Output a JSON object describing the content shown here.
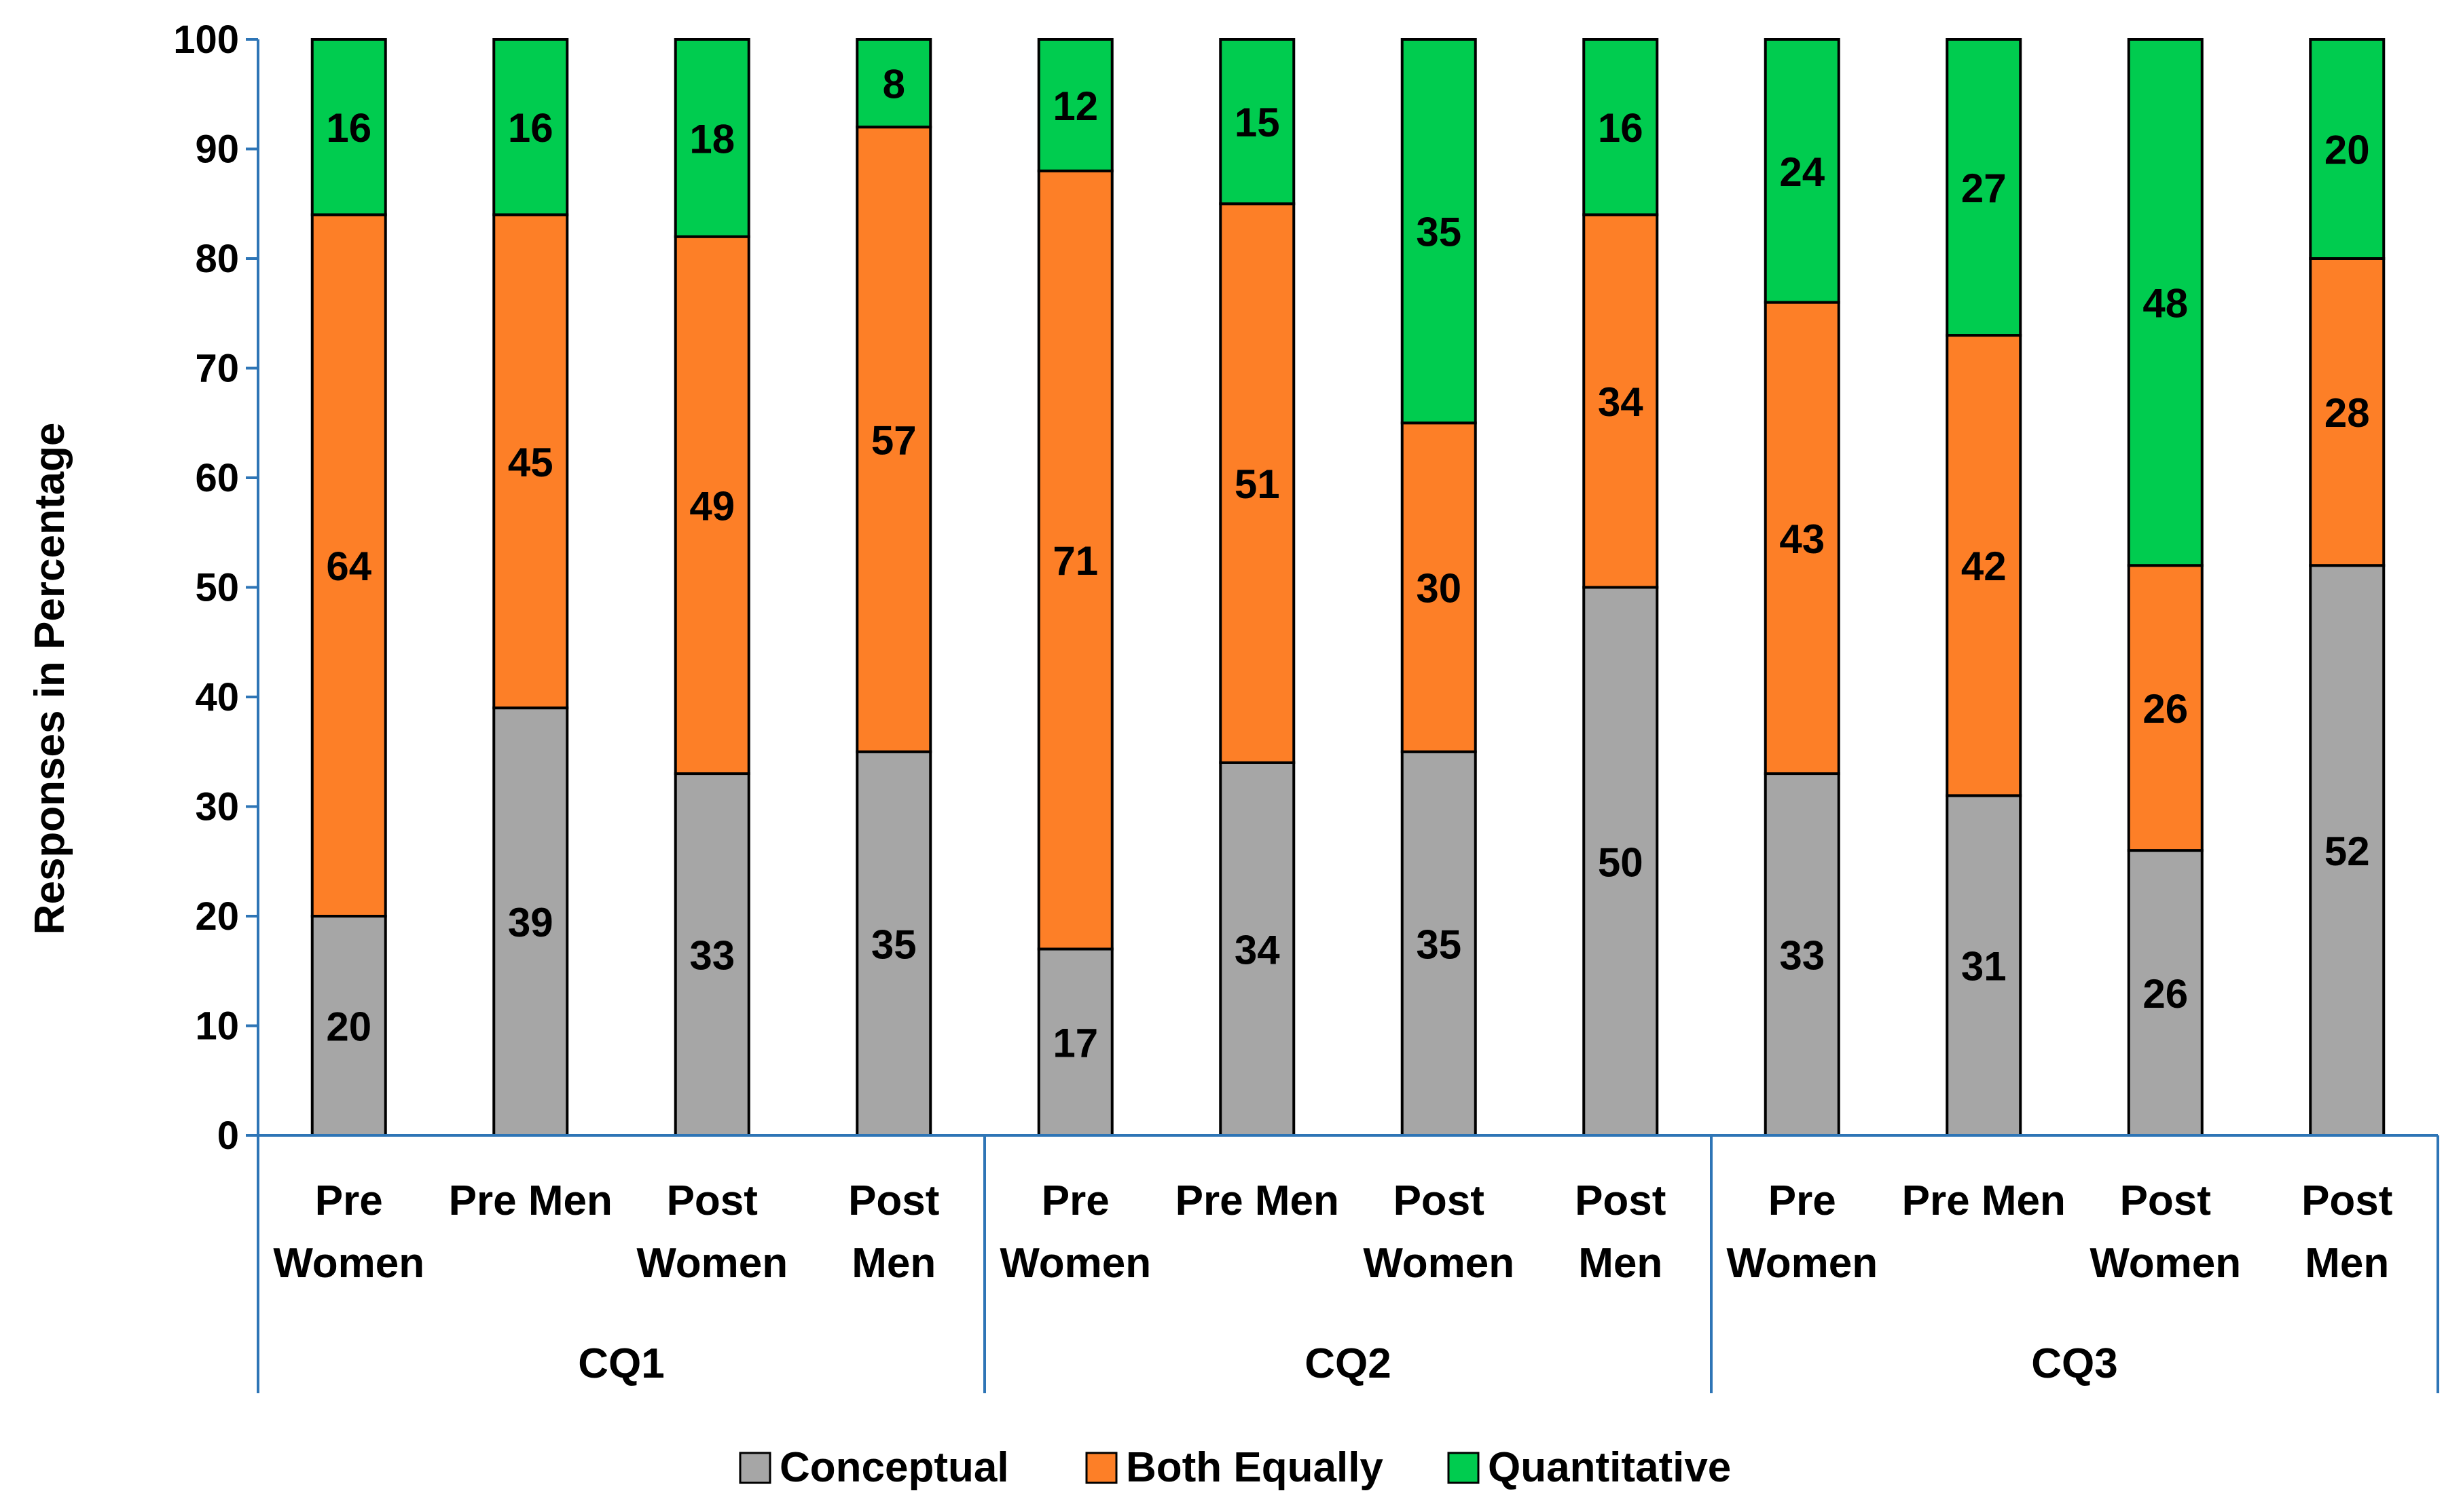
{
  "chart_data": {
    "type": "bar",
    "stacked": true,
    "title": "",
    "xlabel": "",
    "ylabel": "Responses in Percentage",
    "ylim": [
      0,
      100
    ],
    "yticks": [
      0,
      10,
      20,
      30,
      40,
      50,
      60,
      70,
      80,
      90,
      100
    ],
    "legend_position": "bottom",
    "categories": [
      [
        "Pre",
        "Women"
      ],
      [
        "Pre Men"
      ],
      [
        "Post",
        "Women"
      ],
      [
        "Post",
        "Men"
      ],
      [
        "Pre",
        "Women"
      ],
      [
        "Pre Men"
      ],
      [
        "Post",
        "Women"
      ],
      [
        "Post",
        "Men"
      ],
      [
        "Pre",
        "Women"
      ],
      [
        "Pre Men"
      ],
      [
        "Post",
        "Women"
      ],
      [
        "Post",
        "Men"
      ]
    ],
    "groups": [
      {
        "label": "CQ1",
        "span": 4
      },
      {
        "label": "CQ2",
        "span": 4
      },
      {
        "label": "CQ3",
        "span": 4
      }
    ],
    "series": [
      {
        "name": "Conceptual",
        "color": "#a6a6a6",
        "values": [
          20,
          39,
          33,
          35,
          17,
          34,
          35,
          50,
          33,
          31,
          26,
          52
        ]
      },
      {
        "name": "Both Equally",
        "color": "#fd7f27",
        "values": [
          64,
          45,
          49,
          57,
          71,
          51,
          30,
          34,
          43,
          42,
          26,
          28
        ]
      },
      {
        "name": "Quantitative",
        "color": "#00cc4f",
        "values": [
          16,
          16,
          18,
          8,
          12,
          15,
          35,
          16,
          24,
          27,
          48,
          20
        ]
      }
    ],
    "colors": {
      "axis": "#2e75b6",
      "bar_outline": "#000000"
    }
  }
}
